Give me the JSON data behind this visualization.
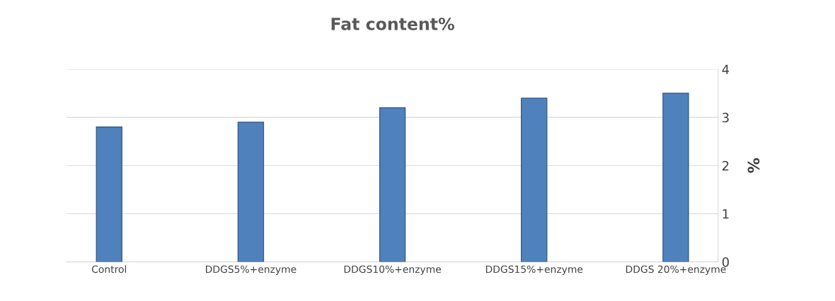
{
  "chart_data": {
    "type": "bar",
    "title": "Fat content%",
    "ylabel": "%",
    "categories": [
      "Control",
      "DDGS5%+enzyme",
      "DDGS10%+enzyme",
      "DDGS15%+enzyme",
      "DDGS 20%+enzyme"
    ],
    "values": [
      2.8,
      2.9,
      3.2,
      3.4,
      3.5
    ],
    "color": "#4f81bd",
    "ylim": [
      0,
      4
    ],
    "yticks": [
      0,
      1,
      2,
      3,
      4
    ],
    "grid": "y"
  }
}
